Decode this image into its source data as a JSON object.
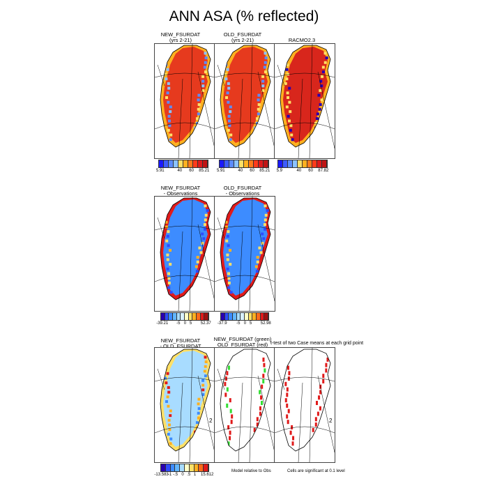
{
  "title": "ANN ASA (% reflected)",
  "row1": {
    "panels": [
      {
        "title_line1": "NEW_FSURDAT",
        "title_line2": "(yrs 2-21)"
      },
      {
        "title_line1": "OLD_FSURDAT",
        "title_line2": "(yrs 2-21)"
      },
      {
        "title_line1": "RACMO2.3",
        "title_line2": ""
      }
    ],
    "colorbars": [
      {
        "labels": [
          "5.91",
          "40",
          "60",
          "85.21"
        ]
      },
      {
        "labels": [
          "5.91",
          "40",
          "60",
          "85.21"
        ]
      },
      {
        "labels": [
          "5.9",
          "40",
          "60",
          "87.82"
        ]
      }
    ]
  },
  "row2": {
    "panels": [
      {
        "title_line1": "NEW_FSURDAT",
        "title_line2": "- Observations"
      },
      {
        "title_line1": "OLD_FSURDAT",
        "title_line2": "- Observations"
      }
    ],
    "colorbars": [
      {
        "labels": [
          "-39.21",
          "-5",
          "0",
          "5",
          "52.37"
        ]
      },
      {
        "labels": [
          "-37.9",
          "-5",
          "0",
          "5",
          "52.98"
        ]
      }
    ]
  },
  "row3": {
    "panels": [
      {
        "title_line1": "NEW_FSURDAT",
        "title_line2": "- OLD_FSURDAT"
      },
      {
        "title_line1": "NEW_FSURDAT (green)",
        "title_line2": "OLD_FSURDAT (red)"
      },
      {
        "title_line1": "",
        "title_line2": ""
      }
    ],
    "overlap_text": "t-test of two Case means at each grid point",
    "colorbar": {
      "labels": [
        "-13.583",
        "-1",
        "-.5",
        "0",
        ".5",
        "1",
        "15.612"
      ]
    },
    "note_model": "Model relative to Obs",
    "note_sig": "Cells are significant at 0.1 level",
    "edge_label": "2"
  },
  "palettes": {
    "albedo": [
      "#1a1aff",
      "#3d5cff",
      "#5c8cff",
      "#8cc3ff",
      "#ffe066",
      "#ffb020",
      "#ff7a1a",
      "#ff3b1a",
      "#e01a1a",
      "#c01414"
    ],
    "diff": [
      "#2a00b0",
      "#2e4cff",
      "#3d8cff",
      "#62b6ff",
      "#a8dcff",
      "#d8f0ff",
      "#ffffc8",
      "#ffe066",
      "#ffb020",
      "#ff6a1a",
      "#e01a1a",
      "#a01010"
    ],
    "sigdiff": [
      "#2a00b0",
      "#2e4cff",
      "#3d8cff",
      "#62b6ff",
      "#a8dcff",
      "#ffffc8",
      "#ffe066",
      "#ffb020",
      "#ff6a1a",
      "#e01a1a"
    ],
    "sig_green": "#33dd33",
    "sig_red": "#e01a1a"
  }
}
